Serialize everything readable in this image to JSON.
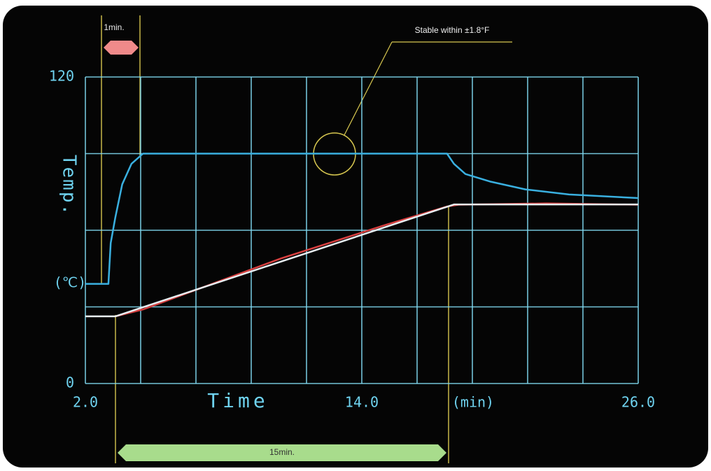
{
  "chart_data": {
    "type": "line",
    "ylabel": "Temp.",
    "yunit": "(℃)",
    "xlabel": "Time",
    "xunit": "(min)",
    "annotations": [
      "1min.",
      "Stable within ±1.8°F",
      "15min."
    ],
    "xlim": [
      2,
      26
    ],
    "ylim": [
      0,
      120
    ],
    "xticks": [
      {
        "value": 2,
        "label": "2.0"
      },
      {
        "value": 4.4,
        "label": null
      },
      {
        "value": 6.8,
        "label": null
      },
      {
        "value": 9.2,
        "label": null
      },
      {
        "value": 11.6,
        "label": null
      },
      {
        "value": 14,
        "label": "14.0"
      },
      {
        "value": 16.4,
        "label": null
      },
      {
        "value": 18.8,
        "label": null
      },
      {
        "value": 21.2,
        "label": null
      },
      {
        "value": 23.6,
        "label": null
      },
      {
        "value": 26,
        "label": "26.0"
      }
    ],
    "yticks": [
      0,
      {
        "value": 30,
        "label": null
      },
      {
        "value": 60,
        "label": null
      },
      {
        "value": 90,
        "label": null
      },
      120
    ],
    "grid": true,
    "series": [
      {
        "color": "#3ab0e0",
        "x": [
          2,
          3,
          3.1,
          3.3,
          3.6,
          4,
          4.5,
          17.7,
          18,
          18.5,
          19.6,
          21.1,
          23,
          26
        ],
        "values": [
          39,
          39,
          55,
          65,
          78,
          86,
          90,
          90,
          86,
          82,
          79,
          76,
          74,
          72.6
        ]
      },
      {
        "color": "#d84040",
        "x": [
          3.3,
          4.5,
          10.5,
          15,
          17.7,
          18.2,
          22,
          26
        ],
        "values": [
          26.3,
          29,
          49,
          62,
          69.3,
          70,
          70.5,
          70
        ]
      },
      {
        "color": "#e8eef2",
        "x": [
          2,
          3.3,
          18,
          26
        ],
        "values": [
          26.3,
          26.3,
          70.1,
          70.1
        ]
      }
    ]
  }
}
